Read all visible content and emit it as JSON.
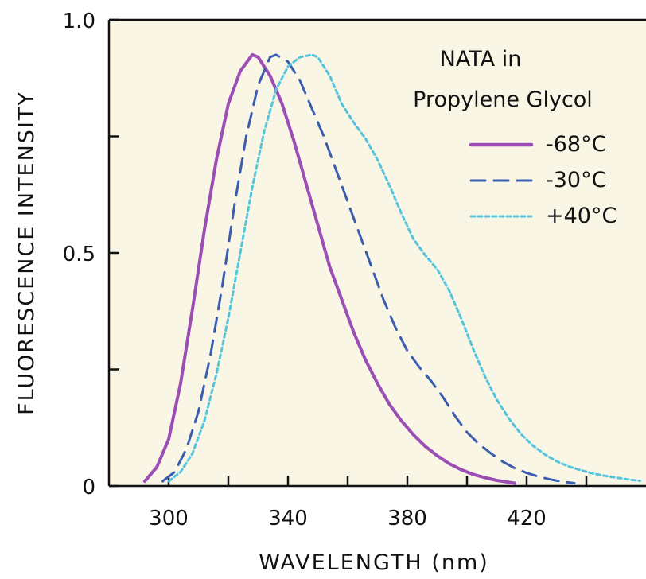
{
  "chart_data": {
    "type": "line",
    "xlabel": "WAVELENGTH (nm)",
    "ylabel": "FLUORESCENCE INTENSITY",
    "xlim": [
      280,
      460
    ],
    "ylim": [
      0,
      1.0
    ],
    "x_ticks": [
      300,
      320,
      340,
      360,
      380,
      400,
      420,
      440
    ],
    "x_tick_labels": [
      "300",
      "340",
      "380",
      "420"
    ],
    "x_tick_label_values": [
      300,
      340,
      380,
      420
    ],
    "y_ticks": [
      0,
      0.25,
      0.5,
      0.75,
      1.0
    ],
    "y_tick_labels": [
      "0",
      "0.5",
      "1.0"
    ],
    "y_tick_label_values": [
      0,
      0.5,
      1.0
    ],
    "background": "#faf6e6",
    "legend": {
      "title_lines": [
        "NATA in",
        "Propylene Glycol"
      ],
      "position": "top-right"
    },
    "series": [
      {
        "name": "-68°C",
        "color": "#9b4fb5",
        "style": "solid",
        "x": [
          292,
          296,
          300,
          304,
          308,
          312,
          316,
          320,
          324,
          328,
          330,
          334,
          338,
          342,
          346,
          350,
          354,
          358,
          362,
          366,
          370,
          374,
          378,
          382,
          386,
          390,
          394,
          398,
          402,
          406,
          410,
          414,
          416
        ],
        "y": [
          0.01,
          0.04,
          0.1,
          0.22,
          0.38,
          0.55,
          0.7,
          0.82,
          0.89,
          0.925,
          0.92,
          0.88,
          0.82,
          0.74,
          0.65,
          0.56,
          0.47,
          0.4,
          0.33,
          0.27,
          0.22,
          0.175,
          0.14,
          0.11,
          0.085,
          0.065,
          0.048,
          0.035,
          0.025,
          0.018,
          0.012,
          0.008,
          0.006
        ]
      },
      {
        "name": "-30°C",
        "color": "#3b5db0",
        "style": "dashed",
        "x": [
          298,
          302,
          306,
          310,
          314,
          318,
          322,
          326,
          330,
          334,
          336,
          340,
          344,
          348,
          352,
          356,
          360,
          364,
          368,
          372,
          376,
          380,
          384,
          388,
          392,
          396,
          400,
          404,
          408,
          412,
          416,
          420,
          424,
          428,
          432,
          436
        ],
        "y": [
          0.01,
          0.03,
          0.08,
          0.16,
          0.28,
          0.43,
          0.6,
          0.75,
          0.86,
          0.92,
          0.925,
          0.91,
          0.87,
          0.81,
          0.75,
          0.68,
          0.61,
          0.54,
          0.47,
          0.4,
          0.34,
          0.29,
          0.255,
          0.225,
          0.19,
          0.15,
          0.115,
          0.09,
          0.07,
          0.052,
          0.038,
          0.028,
          0.02,
          0.014,
          0.009,
          0.006
        ]
      },
      {
        "name": "+40°C",
        "color": "#55c5dd",
        "style": "dotted",
        "x": [
          300,
          304,
          308,
          312,
          316,
          320,
          324,
          328,
          332,
          336,
          340,
          344,
          348,
          350,
          354,
          358,
          362,
          366,
          370,
          374,
          378,
          382,
          386,
          390,
          394,
          398,
          402,
          406,
          410,
          414,
          418,
          422,
          426,
          430,
          434,
          438,
          442,
          446,
          450,
          454,
          458
        ],
        "y": [
          0.01,
          0.03,
          0.07,
          0.14,
          0.24,
          0.36,
          0.5,
          0.64,
          0.76,
          0.85,
          0.9,
          0.92,
          0.925,
          0.92,
          0.88,
          0.82,
          0.78,
          0.745,
          0.7,
          0.645,
          0.585,
          0.53,
          0.495,
          0.465,
          0.42,
          0.36,
          0.295,
          0.235,
          0.185,
          0.145,
          0.112,
          0.087,
          0.068,
          0.053,
          0.042,
          0.034,
          0.027,
          0.022,
          0.018,
          0.014,
          0.011
        ]
      }
    ]
  }
}
